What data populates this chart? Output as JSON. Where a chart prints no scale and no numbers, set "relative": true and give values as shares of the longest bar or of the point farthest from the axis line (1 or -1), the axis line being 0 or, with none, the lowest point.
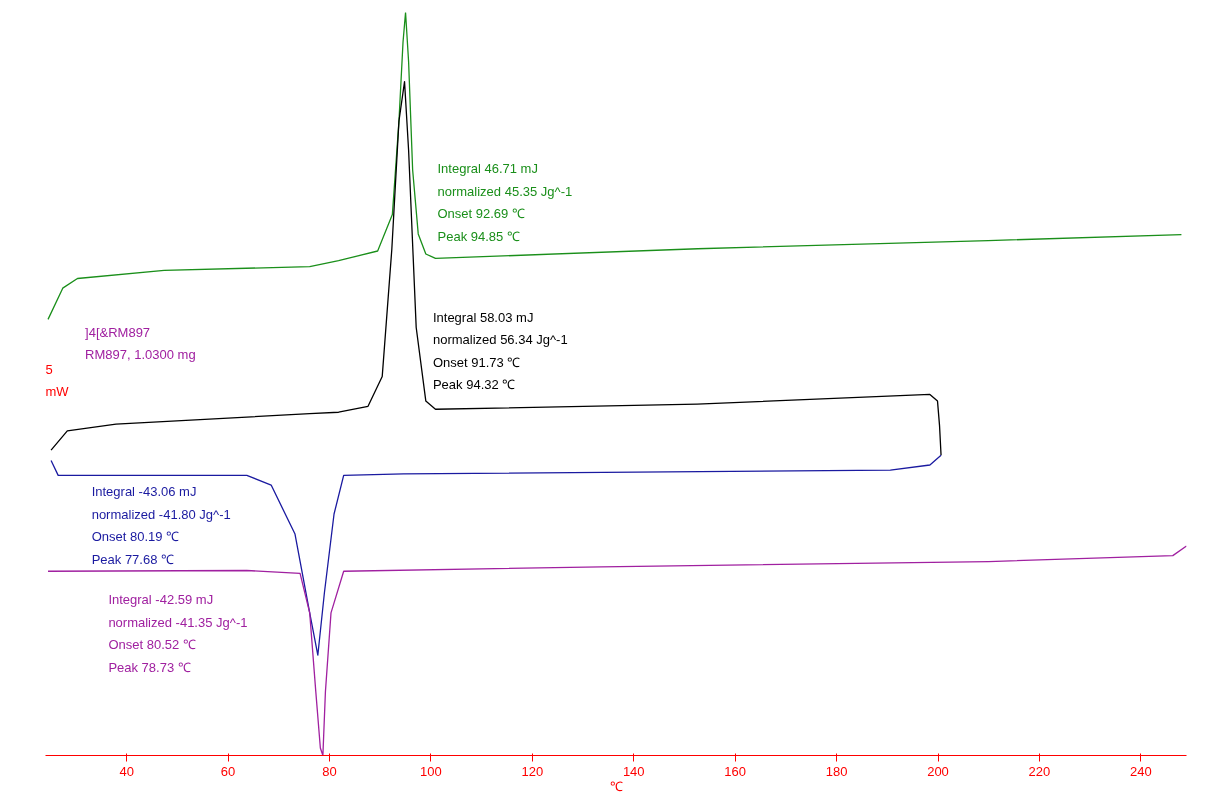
{
  "chart_data": {
    "type": "line",
    "relative": true,
    "xlabel": "℃",
    "xlim": [
      24,
      249
    ],
    "xticks": [
      40,
      60,
      80,
      100,
      120,
      140,
      160,
      180,
      200,
      220,
      240
    ],
    "grid": false,
    "marker": "none",
    "line_style": "solid",
    "series": [
      {
        "color": "#1a8f1a",
        "x": [
          24.5,
          27.4,
          30.3,
          47.4,
          76.1,
          81.8,
          89.5,
          92.4,
          93.7,
          94.5,
          95.0,
          95.6,
          96.4,
          97.5,
          99.0,
          100.9,
          152.6,
          209.9,
          248.0
        ],
        "values": [
          0.587,
          0.629,
          0.642,
          0.653,
          0.658,
          0.666,
          0.679,
          0.728,
          0.854,
          0.96,
          1.0,
          0.934,
          0.788,
          0.702,
          0.675,
          0.669,
          0.682,
          0.693,
          0.701
        ]
      },
      {
        "color": "#000000",
        "x": [
          25.1,
          28.3,
          37.9,
          76.1,
          81.8,
          87.6,
          90.4,
          92.3,
          93.7,
          94.8,
          95.6,
          97.1,
          99.0,
          100.9,
          152.5,
          198.4,
          199.9,
          200.3,
          200.6
        ],
        "values": [
          0.411,
          0.437,
          0.446,
          0.46,
          0.462,
          0.47,
          0.51,
          0.682,
          0.854,
          0.907,
          0.815,
          0.576,
          0.477,
          0.466,
          0.473,
          0.486,
          0.477,
          0.444,
          0.404
        ]
      },
      {
        "color": "#1a1aa0",
        "x": [
          200.6,
          198.4,
          190.6,
          94.6,
          82.8,
          80.9,
          79.0,
          77.7,
          76.1,
          73.2,
          68.5,
          63.7,
          37.9,
          26.5,
          25.1
        ],
        "values": [
          0.404,
          0.391,
          0.384,
          0.379,
          0.377,
          0.325,
          0.219,
          0.135,
          0.192,
          0.298,
          0.364,
          0.377,
          0.377,
          0.377,
          0.397
        ]
      },
      {
        "color": "#a020a0",
        "x": [
          24.5,
          63.7,
          74.2,
          76.1,
          77.3,
          78.2,
          78.7,
          79.2,
          80.3,
          82.8,
          133.6,
          210.0,
          246.3,
          249.0
        ],
        "values": [
          0.248,
          0.249,
          0.245,
          0.192,
          0.086,
          0.01,
          0.0,
          0.086,
          0.192,
          0.248,
          0.254,
          0.261,
          0.269,
          0.282
        ]
      }
    ],
    "annotations": [
      "Integral 46.71 mJ\n  normalized 45.35 Jg^-1\nOnset 92.69 ℃\nPeak 94.85 ℃",
      "Integral 58.03 mJ\n  normalized 56.34 Jg^-1\nOnset 91.73 ℃\nPeak 94.32 ℃",
      "Integral -43.06 mJ\n  normalized -41.80 Jg^-1\nOnset 80.19 ℃\nPeak 77.68 ℃",
      "Integral -42.59 mJ\n  normalized -41.35 Jg^-1\nOnset 80.52 ℃\nPeak 78.73 ℃",
      "]4[&RM897\nRM897, 1.0300 mg",
      "5\nmW"
    ]
  }
}
